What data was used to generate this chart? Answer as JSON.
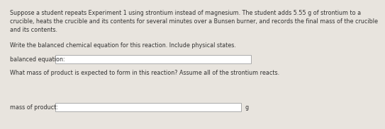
{
  "paragraph_text": "Suppose a student repeats Experiment 1 using strontium instead of magnesium. The student adds 5.55 g of strontium to a\ncrucible, heats the crucible and its contents for several minutes over a Bunsen burner, and records the final mass of the crucible\nand its contents.",
  "line1": "Write the balanced chemical equation for this reaction. Include physical states.",
  "label1": "balanced equation:",
  "label2": "mass of product:",
  "line2": "What mass of product is expected to form in this reaction? Assume all of the strontium reacts.",
  "answer_unit": "g",
  "bg_color": "#e8e4de",
  "box_fill": "#ffffff",
  "box_edge": "#aaaaaa",
  "font_size_body": 5.8,
  "font_size_label": 5.8
}
